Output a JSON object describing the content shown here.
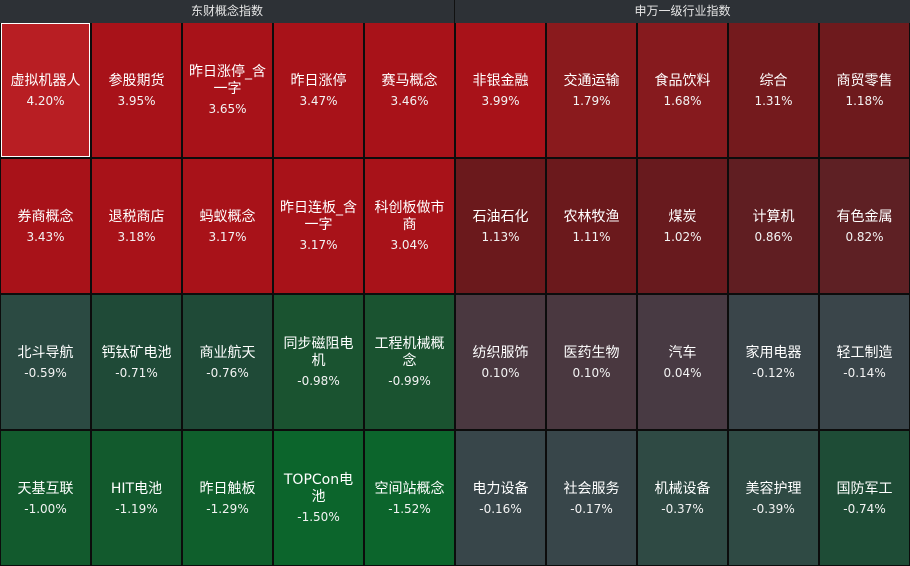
{
  "panels": [
    {
      "title": "东财概念指数",
      "tiles": [
        {
          "name": "虚拟机器人",
          "pct": "4.20%",
          "color": "#b81e23",
          "selected": true
        },
        {
          "name": "参股期货",
          "pct": "3.95%",
          "color": "#a81219"
        },
        {
          "name": "昨日涨停_含一字",
          "pct": "3.65%",
          "color": "#a81219"
        },
        {
          "name": "昨日涨停",
          "pct": "3.47%",
          "color": "#a81219"
        },
        {
          "name": "赛马概念",
          "pct": "3.46%",
          "color": "#a81219"
        },
        {
          "name": "券商概念",
          "pct": "3.43%",
          "color": "#a81219"
        },
        {
          "name": "退税商店",
          "pct": "3.18%",
          "color": "#a81219"
        },
        {
          "name": "蚂蚁概念",
          "pct": "3.17%",
          "color": "#a81219"
        },
        {
          "name": "昨日连板_含一字",
          "pct": "3.17%",
          "color": "#a81219"
        },
        {
          "name": "科创板做市商",
          "pct": "3.04%",
          "color": "#a81219"
        },
        {
          "name": "北斗导航",
          "pct": "-0.59%",
          "color": "#2b4a42"
        },
        {
          "name": "钙钛矿电池",
          "pct": "-0.71%",
          "color": "#1f4a37"
        },
        {
          "name": "商业航天",
          "pct": "-0.76%",
          "color": "#1f4a37"
        },
        {
          "name": "同步磁阻电机",
          "pct": "-0.98%",
          "color": "#1a5330"
        },
        {
          "name": "工程机械概念",
          "pct": "-0.99%",
          "color": "#1a5330"
        },
        {
          "name": "天基互联",
          "pct": "-1.00%",
          "color": "#125a2d"
        },
        {
          "name": "HIT电池",
          "pct": "-1.19%",
          "color": "#125a2d"
        },
        {
          "name": "昨日触板",
          "pct": "-1.29%",
          "color": "#0f5f2c"
        },
        {
          "name": "TOPCon电池",
          "pct": "-1.50%",
          "color": "#0c652c"
        },
        {
          "name": "空间站概念",
          "pct": "-1.52%",
          "color": "#0c652c"
        }
      ]
    },
    {
      "title": "申万一级行业指数",
      "tiles": [
        {
          "name": "非银金融",
          "pct": "3.99%",
          "color": "#a81219"
        },
        {
          "name": "交通运输",
          "pct": "1.79%",
          "color": "#8a1a1d"
        },
        {
          "name": "食品饮料",
          "pct": "1.68%",
          "color": "#861a1e"
        },
        {
          "name": "综合",
          "pct": "1.31%",
          "color": "#741a1d"
        },
        {
          "name": "商贸零售",
          "pct": "1.18%",
          "color": "#6e1a1d"
        },
        {
          "name": "石油石化",
          "pct": "1.13%",
          "color": "#6b191c"
        },
        {
          "name": "农林牧渔",
          "pct": "1.11%",
          "color": "#6b191c"
        },
        {
          "name": "煤炭",
          "pct": "1.02%",
          "color": "#681a1e"
        },
        {
          "name": "计算机",
          "pct": "0.86%",
          "color": "#601e22"
        },
        {
          "name": "有色金属",
          "pct": "0.82%",
          "color": "#5e2024"
        },
        {
          "name": "纺织服饰",
          "pct": "0.10%",
          "color": "#4a3840"
        },
        {
          "name": "医药生物",
          "pct": "0.10%",
          "color": "#4a3840"
        },
        {
          "name": "汽车",
          "pct": "0.04%",
          "color": "#483a43"
        },
        {
          "name": "家用电器",
          "pct": "-0.12%",
          "color": "#3a454a"
        },
        {
          "name": "轻工制造",
          "pct": "-0.14%",
          "color": "#3a454a"
        },
        {
          "name": "电力设备",
          "pct": "-0.16%",
          "color": "#38464a"
        },
        {
          "name": "社会服务",
          "pct": "-0.17%",
          "color": "#38464a"
        },
        {
          "name": "机械设备",
          "pct": "-0.37%",
          "color": "#2f4a44"
        },
        {
          "name": "美容护理",
          "pct": "-0.39%",
          "color": "#2f4a44"
        },
        {
          "name": "国防军工",
          "pct": "-0.74%",
          "color": "#1e4c36"
        }
      ]
    }
  ]
}
